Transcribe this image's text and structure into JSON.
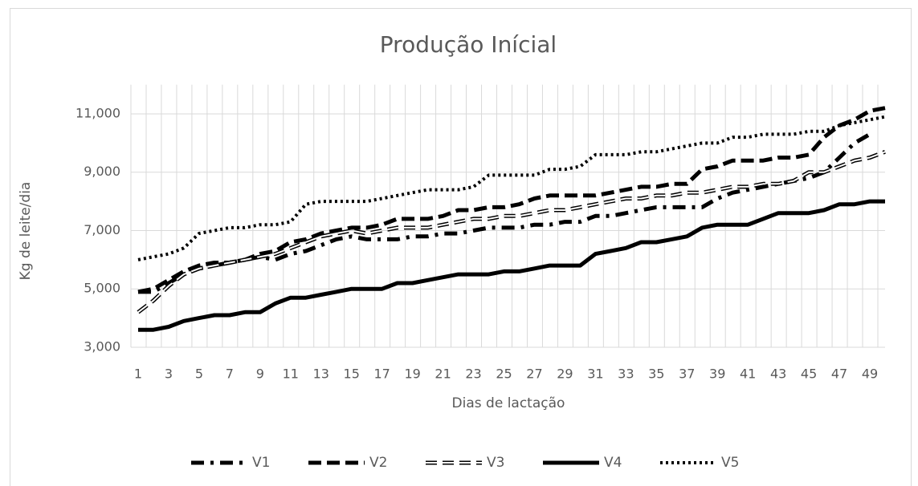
{
  "chart_data": {
    "type": "line",
    "title": "Produção Inícial",
    "x_label": "Dias de lactação",
    "y_label": "Kg de leite/dia",
    "categories": [
      1,
      null,
      3,
      null,
      5,
      null,
      7,
      null,
      9,
      null,
      11,
      null,
      13,
      null,
      15,
      null,
      17,
      null,
      19,
      null,
      21,
      null,
      23,
      null,
      25,
      null,
      27,
      null,
      29,
      null,
      31,
      null,
      33,
      null,
      35,
      null,
      37,
      null,
      39,
      null,
      41,
      null,
      43,
      null,
      45,
      null,
      47,
      null,
      49,
      null
    ],
    "ylim": [
      3000,
      12000
    ],
    "yticks": [
      {
        "value": 3000,
        "label": "3,000"
      },
      {
        "value": 5000,
        "label": "5,000"
      },
      {
        "value": 7000,
        "label": "7,000"
      },
      {
        "value": 9000,
        "label": "9,000"
      },
      {
        "value": 11000,
        "label": "11,000"
      }
    ],
    "grid": true,
    "legend": "bottom",
    "series": [
      {
        "name": "V1",
        "color": "#000000",
        "style": "dash-dot",
        "values": [
          4900,
          4900,
          5200,
          5500,
          5700,
          5800,
          5900,
          6000,
          6100,
          6000,
          6200,
          6300,
          6500,
          6700,
          6800,
          6700,
          6700,
          6700,
          6800,
          6800,
          6900,
          6900,
          7000,
          7100,
          7100,
          7100,
          7200,
          7200,
          7300,
          7300,
          7500,
          7500,
          7600,
          7700,
          7800,
          7800,
          7800,
          7800,
          8100,
          8300,
          8400,
          8500,
          8600,
          8700,
          8800,
          9000,
          9500,
          10000,
          10300,
          null
        ]
      },
      {
        "name": "V2",
        "color": "#000000",
        "style": "dash",
        "values": [
          4900,
          5000,
          5300,
          5600,
          5800,
          5900,
          5900,
          6000,
          6200,
          6300,
          6600,
          6700,
          6900,
          7000,
          7100,
          7100,
          7200,
          7400,
          7400,
          7400,
          7500,
          7700,
          7700,
          7800,
          7800,
          7900,
          8100,
          8200,
          8200,
          8200,
          8200,
          8300,
          8400,
          8500,
          8500,
          8600,
          8600,
          9100,
          9200,
          9400,
          9400,
          9400,
          9500,
          9500,
          9600,
          10200,
          10600,
          10800,
          11100,
          11200
        ]
      },
      {
        "name": "V3",
        "color": "#000000",
        "style": "double",
        "values": [
          4200,
          4600,
          5100,
          5500,
          5700,
          5800,
          5900,
          6000,
          6100,
          6200,
          6400,
          6600,
          6800,
          6900,
          7000,
          6900,
          7000,
          7100,
          7100,
          7100,
          7200,
          7300,
          7400,
          7400,
          7500,
          7500,
          7600,
          7700,
          7700,
          7800,
          7900,
          8000,
          8100,
          8100,
          8200,
          8200,
          8300,
          8300,
          8400,
          8500,
          8500,
          8600,
          8600,
          8700,
          9000,
          9000,
          9200,
          9400,
          9500,
          9700
        ]
      },
      {
        "name": "V4",
        "color": "#000000",
        "style": "solid",
        "values": [
          3600,
          3600,
          3700,
          3900,
          4000,
          4100,
          4100,
          4200,
          4200,
          4500,
          4700,
          4700,
          4800,
          4900,
          5000,
          5000,
          5000,
          5200,
          5200,
          5300,
          5400,
          5500,
          5500,
          5500,
          5600,
          5600,
          5700,
          5800,
          5800,
          5800,
          6200,
          6300,
          6400,
          6600,
          6600,
          6700,
          6800,
          7100,
          7200,
          7200,
          7200,
          7400,
          7600,
          7600,
          7600,
          7700,
          7900,
          7900,
          8000,
          8000
        ]
      },
      {
        "name": "V5",
        "color": "#000000",
        "style": "dot",
        "values": [
          6000,
          6100,
          6200,
          6400,
          6900,
          7000,
          7100,
          7100,
          7200,
          7200,
          7300,
          7900,
          8000,
          8000,
          8000,
          8000,
          8100,
          8200,
          8300,
          8400,
          8400,
          8400,
          8500,
          8900,
          8900,
          8900,
          8900,
          9100,
          9100,
          9200,
          9600,
          9600,
          9600,
          9700,
          9700,
          9800,
          9900,
          10000,
          10000,
          10200,
          10200,
          10300,
          10300,
          10300,
          10400,
          10400,
          10600,
          10700,
          10800,
          10900
        ]
      }
    ]
  }
}
